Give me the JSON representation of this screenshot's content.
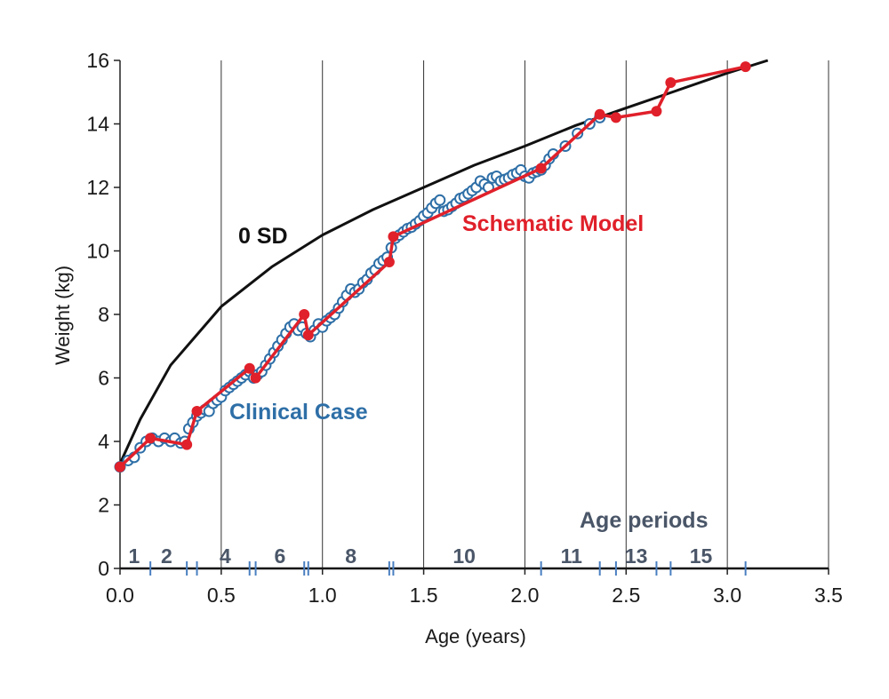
{
  "chart_data": {
    "type": "line",
    "title": "",
    "xlabel": "Age (years)",
    "ylabel": "Weight (kg)",
    "xlim": [
      0,
      3.5
    ],
    "ylim": [
      0,
      16
    ],
    "x_ticks": [
      0.0,
      0.5,
      1.0,
      1.5,
      2.0,
      2.5,
      3.0,
      3.5
    ],
    "x_tick_labels": [
      "0.0",
      "0.5",
      "1.0",
      "1.5",
      "2.0",
      "2.5",
      "3.0",
      "3.5"
    ],
    "y_ticks": [
      0,
      2,
      4,
      6,
      8,
      10,
      12,
      14,
      16
    ],
    "y_tick_labels": [
      "0",
      "2",
      "4",
      "6",
      "8",
      "10",
      "12",
      "14",
      "16"
    ],
    "grid": "vertical",
    "colors": {
      "sd": "#111111",
      "model": "#e0202a",
      "clinical": "#2e6fa7",
      "periods": "#4a5668",
      "period_marks": "#4a7fc1"
    },
    "series": [
      {
        "name": "0 SD",
        "style": "line",
        "x": [
          0.0,
          0.1,
          0.25,
          0.5,
          0.75,
          1.0,
          1.25,
          1.5,
          1.75,
          2.0,
          2.25,
          2.5,
          2.75,
          3.0,
          3.2
        ],
        "y": [
          3.3,
          4.7,
          6.4,
          8.25,
          9.5,
          10.5,
          11.3,
          12.0,
          12.7,
          13.3,
          13.95,
          14.5,
          15.05,
          15.6,
          16.0
        ]
      },
      {
        "name": "Schematic Model",
        "style": "line-markers",
        "x": [
          0.0,
          0.15,
          0.33,
          0.38,
          0.64,
          0.67,
          0.91,
          0.93,
          1.33,
          1.35,
          2.08,
          2.37,
          2.45,
          2.65,
          2.72,
          3.09
        ],
        "y": [
          3.2,
          4.1,
          3.9,
          4.95,
          6.3,
          6.0,
          8.0,
          7.35,
          9.65,
          10.45,
          12.6,
          14.3,
          14.2,
          14.4,
          15.3,
          15.8
        ]
      },
      {
        "name": "Clinical Case",
        "style": "open-markers",
        "x": [
          0.0,
          0.04,
          0.07,
          0.1,
          0.13,
          0.16,
          0.19,
          0.22,
          0.25,
          0.27,
          0.3,
          0.32,
          0.34,
          0.36,
          0.38,
          0.4,
          0.42,
          0.44,
          0.46,
          0.48,
          0.5,
          0.52,
          0.54,
          0.56,
          0.58,
          0.6,
          0.62,
          0.64,
          0.66,
          0.68,
          0.7,
          0.72,
          0.74,
          0.76,
          0.78,
          0.8,
          0.82,
          0.84,
          0.86,
          0.88,
          0.9,
          0.92,
          0.94,
          0.96,
          0.98,
          1.0,
          1.02,
          1.04,
          1.06,
          1.08,
          1.1,
          1.12,
          1.14,
          1.16,
          1.18,
          1.2,
          1.22,
          1.24,
          1.26,
          1.28,
          1.3,
          1.32,
          1.34,
          1.36,
          1.38,
          1.4,
          1.42,
          1.44,
          1.46,
          1.48,
          1.5,
          1.52,
          1.54,
          1.56,
          1.58,
          1.6,
          1.62,
          1.64,
          1.66,
          1.68,
          1.7,
          1.72,
          1.74,
          1.76,
          1.78,
          1.8,
          1.82,
          1.84,
          1.86,
          1.88,
          1.9,
          1.92,
          1.94,
          1.96,
          1.98,
          2.0,
          2.02,
          2.04,
          2.06,
          2.08,
          2.1,
          2.12,
          2.14,
          2.2,
          2.26,
          2.32,
          2.37
        ],
        "y": [
          3.2,
          3.4,
          3.5,
          3.8,
          4.0,
          4.1,
          4.0,
          4.1,
          4.0,
          4.1,
          3.95,
          4.0,
          4.4,
          4.6,
          4.8,
          4.9,
          5.0,
          4.95,
          5.2,
          5.3,
          5.4,
          5.6,
          5.7,
          5.8,
          5.9,
          6.0,
          6.1,
          6.2,
          6.0,
          6.1,
          6.2,
          6.4,
          6.6,
          6.8,
          7.0,
          7.2,
          7.4,
          7.6,
          7.7,
          7.5,
          7.6,
          7.4,
          7.3,
          7.5,
          7.7,
          7.6,
          7.8,
          7.9,
          8.0,
          8.2,
          8.4,
          8.6,
          8.8,
          8.7,
          8.8,
          9.0,
          9.1,
          9.3,
          9.4,
          9.6,
          9.7,
          9.8,
          10.1,
          10.4,
          10.5,
          10.6,
          10.7,
          10.75,
          10.85,
          10.95,
          11.1,
          11.2,
          11.35,
          11.5,
          11.6,
          11.25,
          11.3,
          11.4,
          11.5,
          11.65,
          11.7,
          11.8,
          11.9,
          12.0,
          12.2,
          12.1,
          12.0,
          12.3,
          12.35,
          12.2,
          12.25,
          12.3,
          12.4,
          12.45,
          12.55,
          12.35,
          12.3,
          12.45,
          12.5,
          12.55,
          12.7,
          12.9,
          13.05,
          13.3,
          13.7,
          14.0,
          14.2
        ]
      }
    ],
    "annotations": {
      "sd_label": "0 SD",
      "model_label": "Schematic Model",
      "clinical_label": "Clinical Case",
      "periods_title": "Age periods"
    },
    "age_periods": {
      "labels": [
        {
          "text": "1",
          "x": 0.07
        },
        {
          "text": "2",
          "x": 0.23
        },
        {
          "text": "4",
          "x": 0.52
        },
        {
          "text": "6",
          "x": 0.79
        },
        {
          "text": "8",
          "x": 1.14
        },
        {
          "text": "10",
          "x": 1.7
        },
        {
          "text": "11",
          "x": 2.23
        },
        {
          "text": "13",
          "x": 2.55
        },
        {
          "text": "15",
          "x": 2.87
        }
      ],
      "boundaries": [
        0.15,
        0.33,
        0.38,
        0.64,
        0.67,
        0.91,
        0.93,
        1.33,
        1.35,
        2.08,
        2.37,
        2.45,
        2.65,
        2.72,
        3.09
      ]
    }
  }
}
